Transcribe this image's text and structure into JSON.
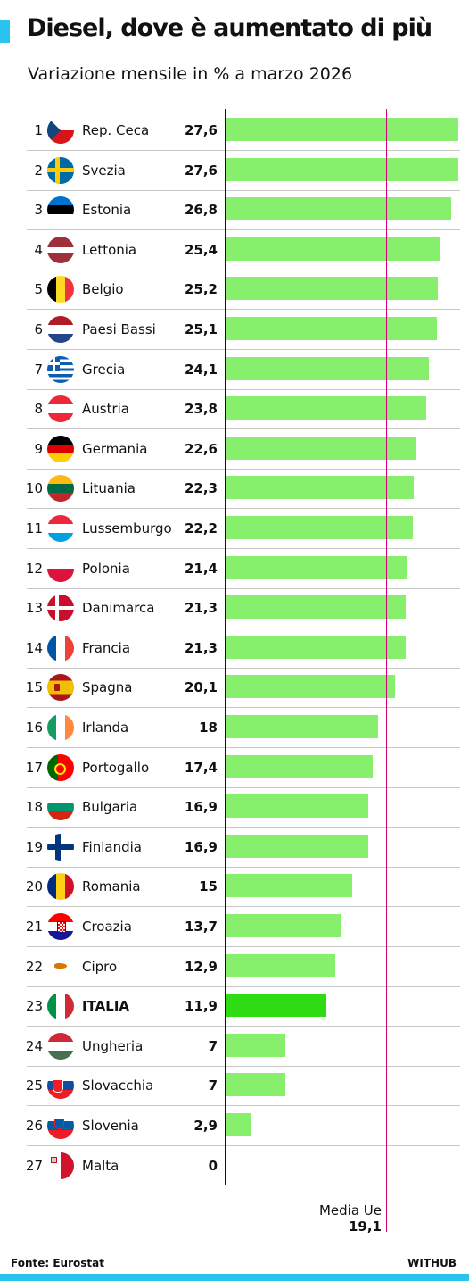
{
  "header": {
    "title": "Diesel, dove è aumentato di più",
    "subtitle": "Variazione mensile in % a marzo 2026"
  },
  "chart_data": {
    "type": "bar",
    "orientation": "horizontal",
    "categories": [
      "Rep. Ceca",
      "Svezia",
      "Estonia",
      "Lettonia",
      "Belgio",
      "Paesi Bassi",
      "Grecia",
      "Austria",
      "Germania",
      "Lituania",
      "Lussemburgo",
      "Polonia",
      "Danimarca",
      "Francia",
      "Spagna",
      "Irlanda",
      "Portogallo",
      "Bulgaria",
      "Finlandia",
      "Romania",
      "Croazia",
      "Cipro",
      "ITALIA",
      "Ungheria",
      "Slovacchia",
      "Slovenia",
      "Malta"
    ],
    "values": [
      27.6,
      27.6,
      26.8,
      25.4,
      25.2,
      25.1,
      24.1,
      23.8,
      22.6,
      22.3,
      22.2,
      21.4,
      21.3,
      21.3,
      20.1,
      18,
      17.4,
      16.9,
      16.9,
      15,
      13.7,
      12.9,
      11.9,
      7,
      7,
      2.9,
      0
    ],
    "value_labels": [
      "27,6",
      "27,6",
      "26,8",
      "25,4",
      "25,2",
      "25,1",
      "24,1",
      "23,8",
      "22,6",
      "22,3",
      "22,2",
      "21,4",
      "21,3",
      "21,3",
      "20,1",
      "18",
      "17,4",
      "16,9",
      "16,9",
      "15",
      "13,7",
      "12,9",
      "11,9",
      "7",
      "7",
      "2,9",
      "0"
    ],
    "ranks": [
      "1",
      "2",
      "3",
      "4",
      "5",
      "6",
      "7",
      "8",
      "9",
      "10",
      "11",
      "12",
      "13",
      "14",
      "15",
      "16",
      "17",
      "18",
      "19",
      "20",
      "21",
      "22",
      "23",
      "24",
      "25",
      "26",
      "27"
    ],
    "highlight": "ITALIA",
    "xlim": [
      0,
      27.6
    ],
    "reference_line": {
      "label": "Media Ue",
      "value": 19.1,
      "value_label": "19,1",
      "color": "#d4007a"
    },
    "colors": {
      "bar": "#86ef6c",
      "highlight_bar": "#2fdc13",
      "accent": "#29c4ee"
    }
  },
  "flags": [
    "flag-czechia-icon",
    "flag-sweden-icon",
    "flag-estonia-icon",
    "flag-latvia-icon",
    "flag-belgium-icon",
    "flag-netherlands-icon",
    "flag-greece-icon",
    "flag-austria-icon",
    "flag-germany-icon",
    "flag-lithuania-icon",
    "flag-luxembourg-icon",
    "flag-poland-icon",
    "flag-denmark-icon",
    "flag-france-icon",
    "flag-spain-icon",
    "flag-ireland-icon",
    "flag-portugal-icon",
    "flag-bulgaria-icon",
    "flag-finland-icon",
    "flag-romania-icon",
    "flag-croatia-icon",
    "flag-cyprus-icon",
    "flag-italy-icon",
    "flag-hungary-icon",
    "flag-slovakia-icon",
    "flag-slovenia-icon",
    "flag-malta-icon"
  ],
  "footer": {
    "source": "Fonte: Eurostat",
    "brand": "WITHUB"
  }
}
